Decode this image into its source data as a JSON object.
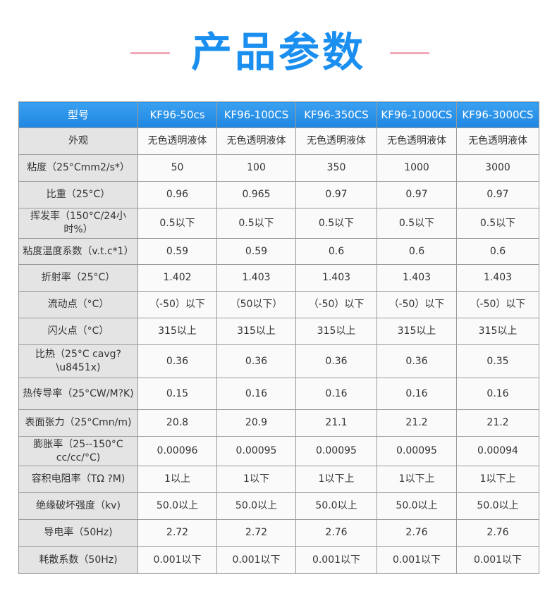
{
  "title": "产品参数",
  "colors": {
    "accent": "#1a8ff0",
    "line": "#f2aab8"
  },
  "headers": [
    "型号",
    "KF96-50cs",
    "KF96-100CS",
    "KF96-350CS",
    "KF96-1000CS",
    "KF96-3000CS"
  ],
  "rows": [
    {
      "label": "外观",
      "values": [
        "无色透明液体",
        "无色透明液体",
        "无色透明液体",
        "无色透明液体",
        "无色透明液体"
      ]
    },
    {
      "label": "粘度（25°Cmm2/s*）",
      "values": [
        "50",
        "100",
        "350",
        "1000",
        "3000"
      ]
    },
    {
      "label": "比重（25°C）",
      "values": [
        "0.96",
        "0.965",
        "0.97",
        "0.97",
        "0.97"
      ]
    },
    {
      "label": "挥发率（150°C/24小时%）",
      "values": [
        "0.5以下",
        "0.5以下",
        "0.5以下",
        "0.5以下",
        "0.5以下"
      ]
    },
    {
      "label": "粘度温度系数（v.t.c*1）",
      "values": [
        "0.59",
        "0.59",
        "0.6",
        "0.6",
        "0.6"
      ]
    },
    {
      "label": "折射率（25°C）",
      "values": [
        "1.402",
        "1.403",
        "1.403",
        "1.403",
        "1.403"
      ]
    },
    {
      "label": "流动点（°C）",
      "values": [
        "（-50）以下",
        "（50以下）",
        "（-50）以下",
        "（-50）以下",
        "（-50）以下"
      ]
    },
    {
      "label": "闪火点（°C）",
      "values": [
        "315以上",
        "315以上",
        "315以上",
        "315以上",
        "315以上"
      ]
    },
    {
      "label": "比热（25°C cavg?\\u8451x)",
      "values": [
        "0.36",
        "0.36",
        "0.36",
        "0.36",
        "0.35"
      ]
    },
    {
      "label": "热传导率（25°CW/M?K)",
      "values": [
        "0.15",
        "0.16",
        "0.16",
        "0.16",
        "0.16"
      ]
    },
    {
      "label": "表面张力（25°Cmn/m)",
      "values": [
        "20.8",
        "20.9",
        "21.1",
        "21.2",
        "21.2"
      ]
    },
    {
      "label": "膨胀率（25--150°C cc/cc/°C)",
      "values": [
        "0.00096",
        "0.00095",
        "0.00095",
        "0.00095",
        "0.00094"
      ]
    },
    {
      "label": "容积电阻率（TΩ ?M)",
      "values": [
        "1以上",
        "1以下",
        "1以下上",
        "1以下上",
        "1以下上"
      ]
    },
    {
      "label": "绝缘破坏强度（kv)",
      "values": [
        "50.0以上",
        "50.0以上",
        "50.0以上",
        "50.0以上",
        "50.0以上"
      ]
    },
    {
      "label": "导电率（50Hz)",
      "values": [
        "2.72",
        "2.72",
        "2.76",
        "2.76",
        "2.76"
      ]
    },
    {
      "label": "耗散系数（50Hz)",
      "values": [
        "0.001以下",
        "0.001以下",
        "0.001以下",
        "0.001以下",
        "0.001以下"
      ]
    }
  ]
}
